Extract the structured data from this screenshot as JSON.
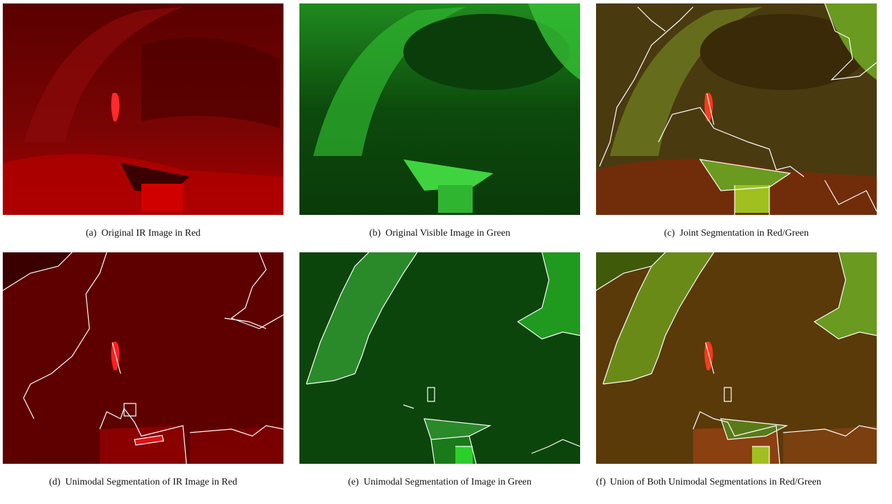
{
  "panels": [
    {
      "label": "(a)",
      "caption": "Original IR Image in Red"
    },
    {
      "label": "(b)",
      "caption": "Original Visible Image in Green"
    },
    {
      "label": "(c)",
      "caption": "Joint Segmentation in Red/Green"
    },
    {
      "label": "(d)",
      "caption": "Unimodal Segmentation of IR Image in Red"
    },
    {
      "label": "(e)",
      "caption": "Unimodal Segmentation of Image in Green"
    },
    {
      "label": "(f)",
      "caption": "Union of Both Unimodal Segmentations in Red/Green"
    }
  ]
}
